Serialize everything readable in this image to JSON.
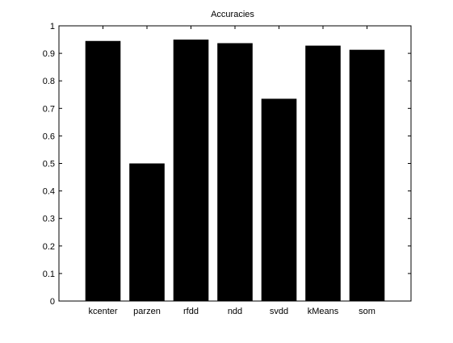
{
  "chart_data": {
    "type": "bar",
    "title": "Accuracies",
    "xlabel": "",
    "ylabel": "",
    "categories": [
      "kcenter",
      "parzen",
      "rfdd",
      "ndd",
      "svdd",
      "kMeans",
      "som"
    ],
    "values": [
      0.945,
      0.5,
      0.95,
      0.937,
      0.735,
      0.928,
      0.913
    ],
    "ylim": [
      0,
      1
    ],
    "yticks": [
      0,
      0.1,
      0.2,
      0.3,
      0.4,
      0.5,
      0.6,
      0.7,
      0.8,
      0.9,
      1
    ],
    "ytick_labels": [
      "0",
      "0.1",
      "0.2",
      "0.3",
      "0.4",
      "0.5",
      "0.6",
      "0.7",
      "0.8",
      "0.9",
      "1"
    ],
    "grid": false,
    "legend": "none",
    "colors": {
      "bar": "#000000",
      "axes": "#000000",
      "background": "#ffffff"
    }
  }
}
